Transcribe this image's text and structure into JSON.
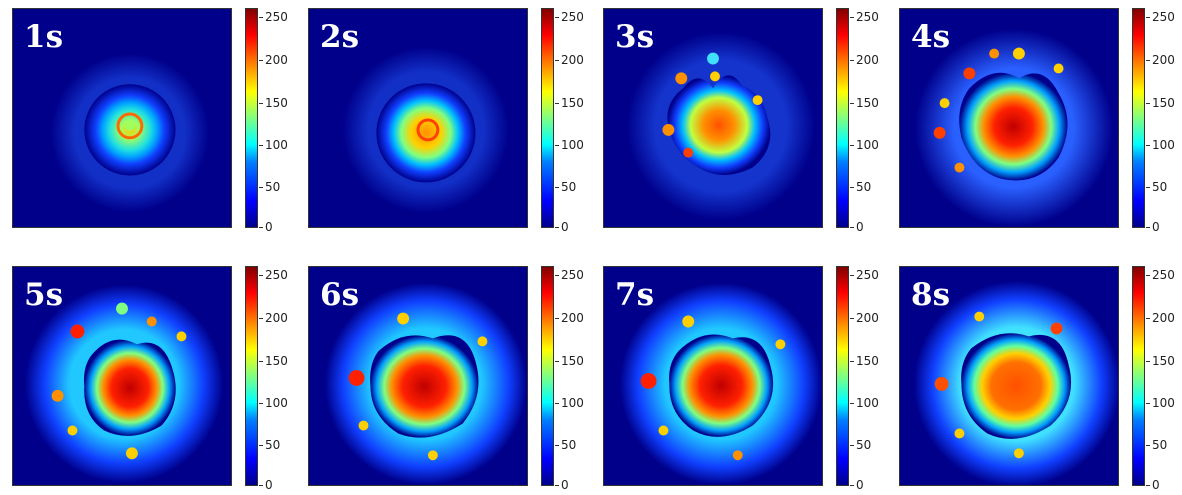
{
  "figure": {
    "panels": [
      {
        "label": "1s"
      },
      {
        "label": "2s"
      },
      {
        "label": "3s"
      },
      {
        "label": "4s"
      },
      {
        "label": "5s"
      },
      {
        "label": "6s"
      },
      {
        "label": "7s"
      },
      {
        "label": "8s"
      }
    ],
    "colorbar": {
      "ticks": [
        "250",
        "200",
        "150",
        "100",
        "50",
        "0"
      ],
      "colormap": "jet",
      "range": [
        0,
        255
      ]
    },
    "colors": {
      "background": "#00008b",
      "halo": "#0a1fd8",
      "mid": "#00ffff",
      "hot": "#ff8000",
      "core": "#d40000"
    }
  }
}
